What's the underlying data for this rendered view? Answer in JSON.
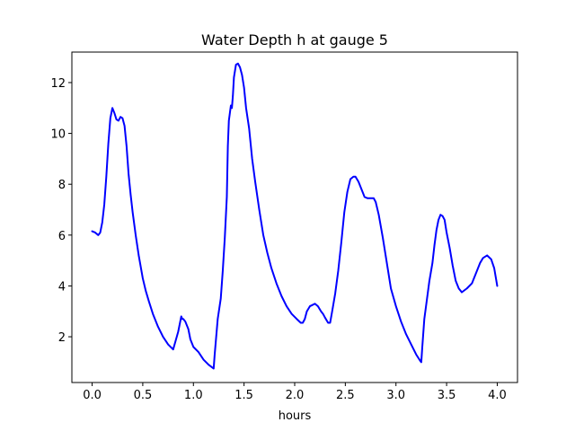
{
  "chart_data": {
    "type": "line",
    "title": "Water Depth h at gauge 5",
    "xlabel": "hours",
    "ylabel": "",
    "xlim": [
      -0.2,
      4.2
    ],
    "ylim": [
      0.2,
      13.2
    ],
    "xticks": [
      0.0,
      0.5,
      1.0,
      1.5,
      2.0,
      2.5,
      3.0,
      3.5,
      4.0
    ],
    "xtick_labels": [
      "0.0",
      "0.5",
      "1.0",
      "1.5",
      "2.0",
      "2.5",
      "3.0",
      "3.5",
      "4.0"
    ],
    "yticks": [
      2,
      4,
      6,
      8,
      10,
      12
    ],
    "ytick_labels": [
      "2",
      "4",
      "6",
      "8",
      "10",
      "12"
    ],
    "grid": false,
    "series": [
      {
        "color": "#0000ff",
        "x": [
          0.0,
          0.03,
          0.06,
          0.08,
          0.1,
          0.12,
          0.14,
          0.16,
          0.18,
          0.2,
          0.22,
          0.24,
          0.26,
          0.28,
          0.3,
          0.32,
          0.34,
          0.36,
          0.38,
          0.4,
          0.43,
          0.46,
          0.5,
          0.53,
          0.56,
          0.6,
          0.65,
          0.7,
          0.75,
          0.8,
          0.85,
          0.87,
          0.88,
          0.89,
          0.9,
          0.92,
          0.95,
          0.97,
          1.0,
          1.05,
          1.1,
          1.15,
          1.2,
          1.21,
          1.24,
          1.27,
          1.29,
          1.31,
          1.33,
          1.34,
          1.35,
          1.37,
          1.38,
          1.39,
          1.4,
          1.42,
          1.44,
          1.46,
          1.48,
          1.5,
          1.52,
          1.55,
          1.58,
          1.61,
          1.65,
          1.69,
          1.73,
          1.77,
          1.82,
          1.87,
          1.92,
          1.97,
          2.02,
          2.06,
          2.08,
          2.1,
          2.12,
          2.15,
          2.2,
          2.23,
          2.26,
          2.28,
          2.3,
          2.33,
          2.35,
          2.37,
          2.4,
          2.43,
          2.46,
          2.49,
          2.52,
          2.55,
          2.58,
          2.6,
          2.63,
          2.66,
          2.69,
          2.72,
          2.75,
          2.78,
          2.8,
          2.83,
          2.87,
          2.91,
          2.95,
          3.0,
          3.05,
          3.1,
          3.15,
          3.2,
          3.24,
          3.25,
          3.26,
          3.28,
          3.3,
          3.33,
          3.36,
          3.38,
          3.4,
          3.42,
          3.44,
          3.46,
          3.48,
          3.5,
          3.53,
          3.56,
          3.59,
          3.62,
          3.65,
          3.7,
          3.75,
          3.8,
          3.83,
          3.86,
          3.9,
          3.94,
          3.97,
          4.0
        ],
        "y": [
          6.15,
          6.1,
          6.0,
          6.1,
          6.5,
          7.2,
          8.3,
          9.6,
          10.6,
          11.0,
          10.8,
          10.55,
          10.5,
          10.65,
          10.6,
          10.3,
          9.5,
          8.4,
          7.6,
          6.9,
          6.0,
          5.2,
          4.3,
          3.8,
          3.4,
          2.9,
          2.4,
          2.0,
          1.7,
          1.5,
          2.2,
          2.6,
          2.8,
          2.7,
          2.7,
          2.6,
          2.3,
          1.9,
          1.6,
          1.4,
          1.1,
          0.9,
          0.75,
          1.3,
          2.7,
          3.5,
          4.6,
          5.9,
          7.5,
          9.5,
          10.5,
          11.1,
          11.0,
          11.5,
          12.2,
          12.7,
          12.75,
          12.6,
          12.3,
          11.8,
          11.0,
          10.2,
          9.0,
          8.1,
          7.0,
          6.0,
          5.3,
          4.7,
          4.1,
          3.6,
          3.2,
          2.9,
          2.7,
          2.55,
          2.55,
          2.7,
          3.0,
          3.2,
          3.3,
          3.2,
          3.0,
          2.9,
          2.75,
          2.55,
          2.55,
          3.0,
          3.7,
          4.6,
          5.7,
          6.9,
          7.7,
          8.2,
          8.3,
          8.3,
          8.1,
          7.8,
          7.5,
          7.45,
          7.45,
          7.45,
          7.3,
          6.8,
          5.9,
          4.9,
          3.9,
          3.2,
          2.6,
          2.1,
          1.7,
          1.3,
          1.05,
          1.0,
          1.6,
          2.7,
          3.3,
          4.2,
          4.9,
          5.6,
          6.2,
          6.6,
          6.8,
          6.75,
          6.6,
          6.1,
          5.5,
          4.8,
          4.2,
          3.9,
          3.75,
          3.9,
          4.1,
          4.6,
          4.9,
          5.1,
          5.2,
          5.05,
          4.7,
          4.0
        ]
      }
    ]
  }
}
